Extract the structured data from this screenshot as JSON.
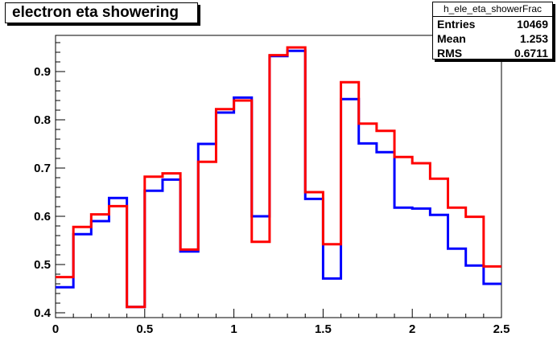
{
  "title": "electron eta showering",
  "stats": {
    "name": "h_ele_eta_showerFrac",
    "rows": [
      {
        "label": "Entries",
        "value": "10469"
      },
      {
        "label": "Mean",
        "value": "1.253"
      },
      {
        "label": "RMS",
        "value": "0.6711"
      }
    ]
  },
  "chart_data": {
    "type": "line",
    "title": "electron eta showering",
    "xlim": [
      0,
      2.5
    ],
    "ylim": [
      0.39,
      0.975
    ],
    "grid": false,
    "x_ticks": [
      "0",
      "0.5",
      "1",
      "1.5",
      "2",
      "2.5"
    ],
    "y_ticks": [
      "0.4",
      "0.5",
      "0.6",
      "0.7",
      "0.8",
      "0.9"
    ],
    "bin_edges": [
      0,
      0.1,
      0.2,
      0.3,
      0.4,
      0.5,
      0.6,
      0.7,
      0.8,
      0.9,
      1.0,
      1.1,
      1.2,
      1.3,
      1.4,
      1.5,
      1.6,
      1.7,
      1.8,
      1.9,
      2.0,
      2.1,
      2.2,
      2.3,
      2.4,
      2.5
    ],
    "series": [
      {
        "color": "#0000ff",
        "values": [
          0.453,
          0.563,
          0.59,
          0.638,
          0.412,
          0.653,
          0.676,
          0.527,
          0.75,
          0.815,
          0.846,
          0.6,
          0.932,
          0.943,
          0.636,
          0.471,
          0.843,
          0.751,
          0.733,
          0.618,
          0.616,
          0.603,
          0.533,
          0.498,
          0.46
        ]
      },
      {
        "color": "#ff0000",
        "values": [
          0.474,
          0.578,
          0.604,
          0.621,
          0.412,
          0.682,
          0.689,
          0.531,
          0.713,
          0.822,
          0.84,
          0.547,
          0.934,
          0.95,
          0.65,
          0.542,
          0.878,
          0.792,
          0.777,
          0.723,
          0.71,
          0.678,
          0.618,
          0.599,
          0.496
        ]
      }
    ]
  }
}
